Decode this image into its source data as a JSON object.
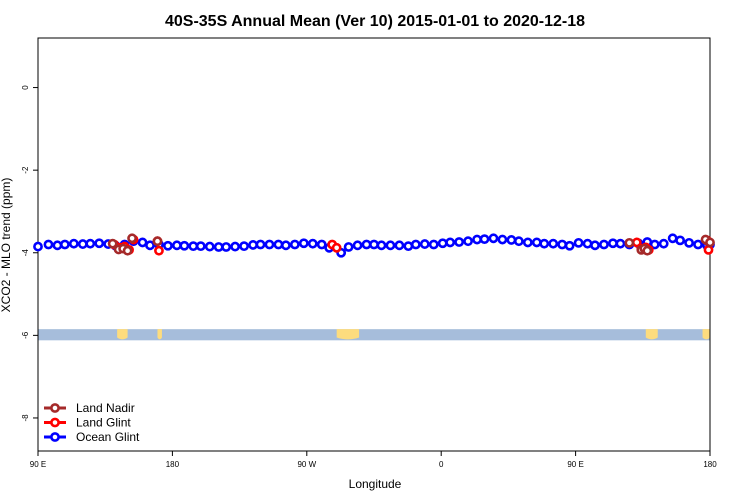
{
  "chart_data": {
    "type": "line",
    "title": "40S-35S Annual Mean (Ver 10)   2015-01-01 to 2020-12-18",
    "xlabel": "Longitude",
    "ylabel": "XCO2 - MLO trend (ppm)",
    "x_range_deg_east": [
      90,
      540
    ],
    "ylim": [
      -8.8,
      1.2
    ],
    "x_ticks": [
      {
        "value": 90,
        "label": "90 E"
      },
      {
        "value": 180,
        "label": "180"
      },
      {
        "value": 270,
        "label": "90 W"
      },
      {
        "value": 360,
        "label": "0"
      },
      {
        "value": 450,
        "label": "90 E"
      },
      {
        "value": 540,
        "label": "180"
      }
    ],
    "y_ticks": [
      {
        "value": 0,
        "label": "0"
      },
      {
        "value": -2,
        "label": "-2"
      },
      {
        "value": -4,
        "label": "-4"
      },
      {
        "value": -6,
        "label": "-6"
      },
      {
        "value": -8,
        "label": "-8"
      }
    ],
    "legend_position": "bottom-left",
    "map_strip": {
      "y_range": [
        -5.85,
        -6.12
      ],
      "ocean_color": "#a6bddb",
      "land_color": "#fddc7e",
      "land_segments": [
        [
          143,
          150
        ],
        [
          170,
          173
        ],
        [
          290,
          305
        ],
        [
          497,
          505
        ],
        [
          535,
          540
        ]
      ]
    },
    "series": [
      {
        "name": "Land Nadir",
        "color": "#a52a2a",
        "x": [
          140,
          144,
          147,
          150,
          153,
          170,
          486,
          494,
          496,
          498,
          537,
          540
        ],
        "y": [
          -3.78,
          -3.92,
          -3.9,
          -3.95,
          -3.65,
          -3.72,
          -3.76,
          -3.93,
          -3.9,
          -3.95,
          -3.68,
          -3.75
        ]
      },
      {
        "name": "Land Glint",
        "color": "#ff0000",
        "x": [
          141,
          145,
          148,
          151,
          154,
          170,
          171,
          287,
          290,
          491,
          494,
          497,
          499,
          538,
          539
        ],
        "y": [
          -3.8,
          -3.88,
          -3.85,
          -3.93,
          -3.68,
          -3.72,
          -3.95,
          -3.8,
          -3.88,
          -3.75,
          -3.9,
          -3.87,
          -3.93,
          -3.7,
          -3.93
        ]
      },
      {
        "name": "Ocean Glint",
        "color": "#0000ff",
        "x": [
          90,
          97,
          103,
          108,
          114,
          120,
          125,
          131,
          137,
          142,
          148,
          154,
          160,
          165,
          171,
          177,
          183,
          188,
          194,
          199,
          205,
          211,
          216,
          222,
          228,
          234,
          239,
          245,
          251,
          256,
          262,
          268,
          274,
          280,
          285,
          293,
          298,
          304,
          310,
          315,
          320,
          326,
          332,
          338,
          343,
          349,
          355,
          361,
          366,
          372,
          378,
          384,
          389,
          395,
          401,
          407,
          412,
          418,
          424,
          429,
          435,
          441,
          446,
          452,
          458,
          463,
          469,
          475,
          480,
          486,
          492,
          498,
          503,
          509,
          515,
          520,
          526,
          532,
          538,
          540
        ],
        "y": [
          -3.85,
          -3.8,
          -3.82,
          -3.8,
          -3.78,
          -3.79,
          -3.78,
          -3.77,
          -3.79,
          -3.83,
          -3.8,
          -3.72,
          -3.75,
          -3.82,
          -3.8,
          -3.83,
          -3.82,
          -3.83,
          -3.84,
          -3.84,
          -3.85,
          -3.86,
          -3.86,
          -3.85,
          -3.84,
          -3.81,
          -3.8,
          -3.8,
          -3.8,
          -3.82,
          -3.8,
          -3.77,
          -3.78,
          -3.8,
          -3.88,
          -4.0,
          -3.86,
          -3.82,
          -3.8,
          -3.8,
          -3.82,
          -3.82,
          -3.82,
          -3.84,
          -3.8,
          -3.79,
          -3.8,
          -3.77,
          -3.75,
          -3.74,
          -3.72,
          -3.68,
          -3.67,
          -3.65,
          -3.68,
          -3.69,
          -3.72,
          -3.75,
          -3.75,
          -3.78,
          -3.78,
          -3.8,
          -3.83,
          -3.76,
          -3.78,
          -3.82,
          -3.8,
          -3.77,
          -3.78,
          -3.8,
          -3.77,
          -3.74,
          -3.8,
          -3.78,
          -3.65,
          -3.7,
          -3.76,
          -3.8,
          -3.82,
          -3.8
        ]
      }
    ]
  }
}
